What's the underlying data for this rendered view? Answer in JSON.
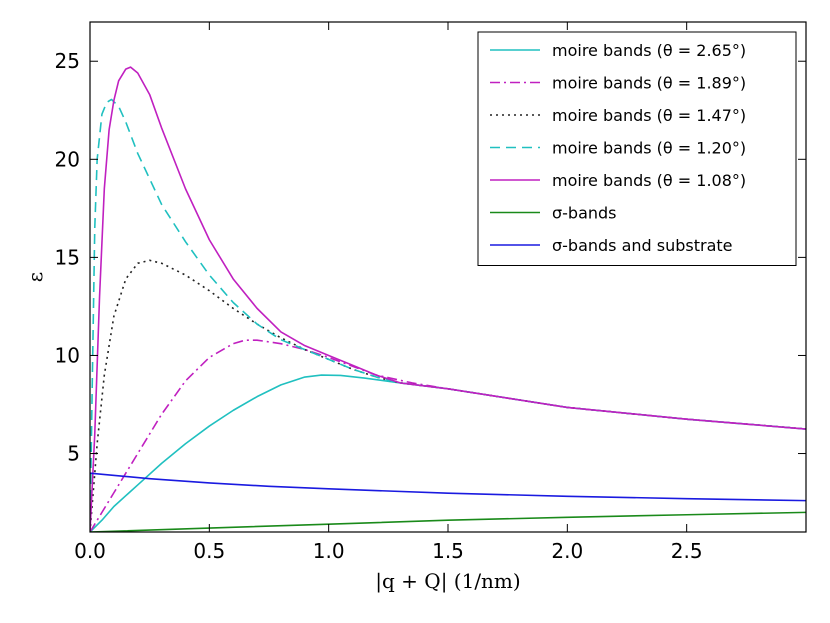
{
  "chart_data": {
    "type": "line",
    "title": "",
    "xlabel": "|q + Q| (1/nm)",
    "ylabel": "ε",
    "xlim": [
      0,
      3.0
    ],
    "ylim": [
      1,
      27
    ],
    "x_ticks": [
      "0.0",
      "0.5",
      "1.0",
      "1.5",
      "2.0",
      "2.5"
    ],
    "x_tick_values": [
      0,
      0.5,
      1.0,
      1.5,
      2.0,
      2.5
    ],
    "y_ticks": [
      "5",
      "10",
      "15",
      "20",
      "25"
    ],
    "y_tick_values": [
      5,
      10,
      15,
      20,
      25
    ],
    "legend_position": "top-right",
    "series": [
      {
        "name": "moire bands (θ = 2.65°)",
        "color": "#20c0c0",
        "style": "solid",
        "x": [
          0,
          0.05,
          0.1,
          0.2,
          0.3,
          0.4,
          0.5,
          0.6,
          0.7,
          0.8,
          0.9,
          0.97,
          1.05,
          1.15,
          1.3,
          1.5,
          2.0,
          2.5,
          3.0
        ],
        "y": [
          1,
          1.6,
          2.3,
          3.4,
          4.5,
          5.5,
          6.4,
          7.2,
          7.9,
          8.5,
          8.9,
          9.0,
          8.98,
          8.85,
          8.6,
          8.3,
          7.35,
          6.75,
          6.25
        ]
      },
      {
        "name": "moire bands (θ = 1.89°)",
        "color": "#c020c0",
        "style": "dashdot",
        "x": [
          0,
          0.05,
          0.1,
          0.2,
          0.3,
          0.4,
          0.5,
          0.6,
          0.65,
          0.7,
          0.8,
          0.9,
          1.0,
          1.1,
          1.2,
          1.35,
          1.5,
          2.0,
          2.5,
          3.0
        ],
        "y": [
          1,
          2.0,
          3.0,
          5.0,
          7.0,
          8.7,
          9.9,
          10.6,
          10.78,
          10.78,
          10.6,
          10.3,
          9.9,
          9.45,
          9.0,
          8.6,
          8.3,
          7.35,
          6.75,
          6.25
        ]
      },
      {
        "name": "moire bands (θ = 1.47°)",
        "color": "#222222",
        "style": "dotted",
        "x": [
          0,
          0.03,
          0.06,
          0.1,
          0.15,
          0.2,
          0.25,
          0.3,
          0.4,
          0.5,
          0.6,
          0.7,
          0.8,
          0.9,
          1.0,
          1.1,
          1.2,
          1.3,
          1.5,
          2.0,
          2.5,
          3.0
        ],
        "y": [
          1,
          5.5,
          9.0,
          12.0,
          13.9,
          14.7,
          14.85,
          14.7,
          14.1,
          13.3,
          12.4,
          11.6,
          10.9,
          10.3,
          9.8,
          9.3,
          8.9,
          8.6,
          8.3,
          7.35,
          6.75,
          6.25
        ]
      },
      {
        "name": "moire bands (θ = 1.20°)",
        "color": "#20c0c0",
        "style": "dashed",
        "x": [
          0,
          0.01,
          0.02,
          0.03,
          0.05,
          0.07,
          0.09,
          0.12,
          0.15,
          0.2,
          0.3,
          0.4,
          0.5,
          0.6,
          0.7,
          0.8,
          0.9,
          1.0,
          1.1,
          1.2,
          1.3,
          1.5,
          2.0,
          2.5,
          3.0
        ],
        "y": [
          1,
          9.0,
          16.5,
          20.0,
          22.3,
          22.9,
          23.05,
          22.7,
          21.9,
          20.3,
          17.7,
          15.8,
          14.1,
          12.7,
          11.6,
          10.8,
          10.3,
          9.8,
          9.3,
          8.9,
          8.6,
          8.3,
          7.35,
          6.75,
          6.25
        ]
      },
      {
        "name": "moire bands (θ = 1.08°)",
        "color": "#c020c0",
        "style": "solid",
        "x": [
          0,
          0.02,
          0.04,
          0.06,
          0.08,
          0.1,
          0.12,
          0.15,
          0.17,
          0.2,
          0.25,
          0.3,
          0.4,
          0.5,
          0.6,
          0.7,
          0.8,
          0.9,
          1.0,
          1.1,
          1.2,
          1.3,
          1.5,
          2.0,
          2.5,
          3.0
        ],
        "y": [
          1,
          6.0,
          13.0,
          18.5,
          21.5,
          23.0,
          24.0,
          24.6,
          24.7,
          24.4,
          23.3,
          21.6,
          18.5,
          15.9,
          13.9,
          12.4,
          11.2,
          10.5,
          10.0,
          9.5,
          9.0,
          8.6,
          8.3,
          7.35,
          6.75,
          6.25
        ]
      },
      {
        "name": "σ-bands",
        "color": "#1a8a1a",
        "style": "solid",
        "x": [
          0,
          0.5,
          1.0,
          1.5,
          2.0,
          2.5,
          3.0
        ],
        "y": [
          1.0,
          1.2,
          1.4,
          1.6,
          1.75,
          1.88,
          2.0
        ]
      },
      {
        "name": "σ-bands and substrate",
        "color": "#1a1ae0",
        "style": "solid",
        "x": [
          0,
          0.25,
          0.5,
          0.75,
          1.0,
          1.5,
          2.0,
          2.5,
          3.0
        ],
        "y": [
          4.0,
          3.72,
          3.5,
          3.33,
          3.2,
          2.98,
          2.82,
          2.7,
          2.6
        ]
      }
    ]
  }
}
